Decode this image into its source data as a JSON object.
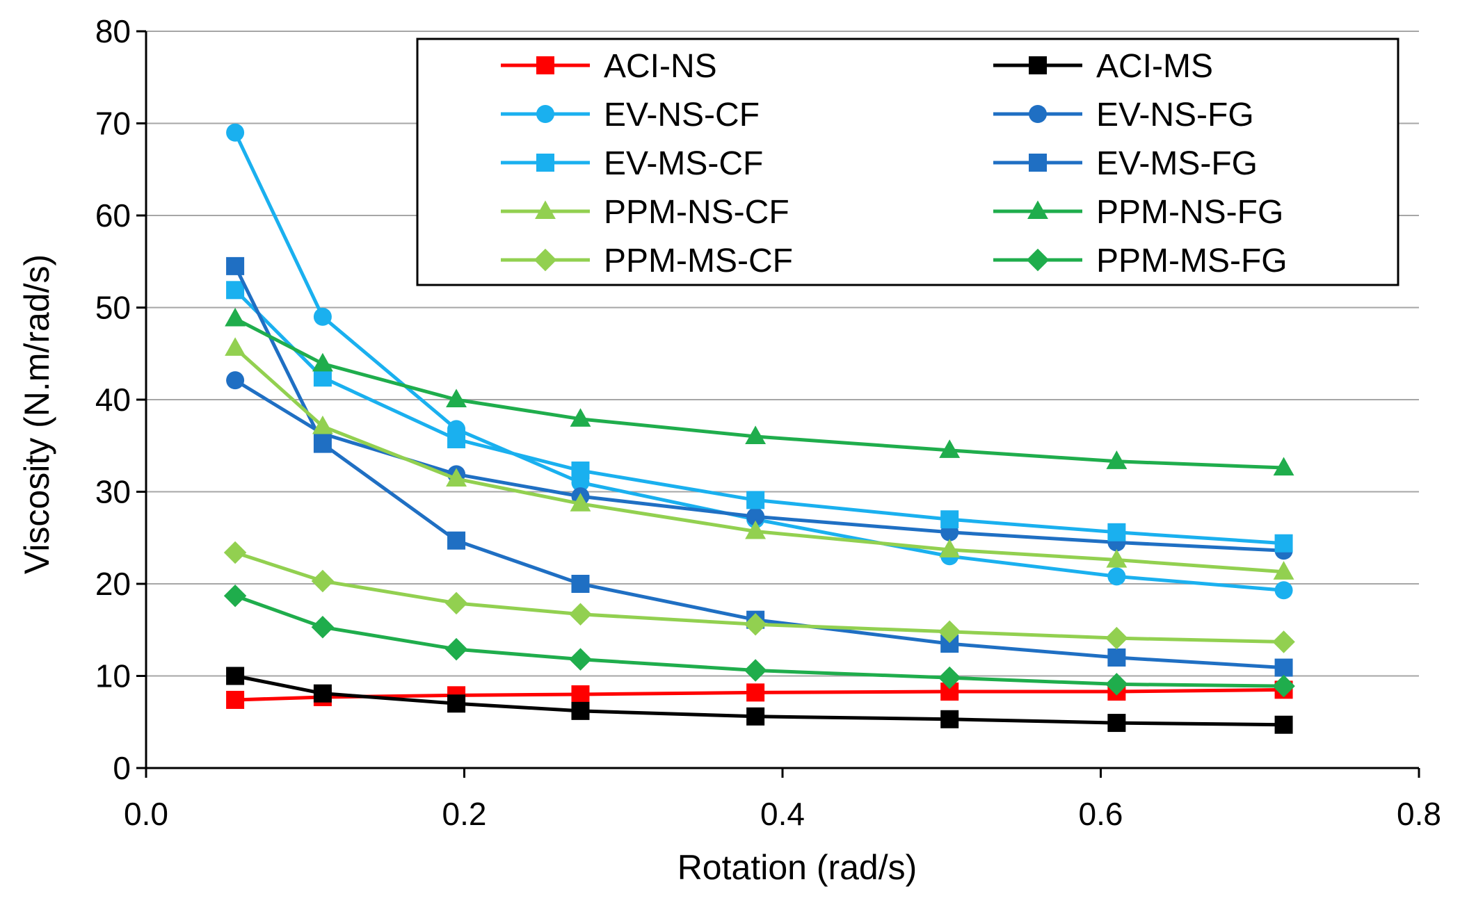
{
  "chart_data": {
    "type": "line",
    "title": "",
    "xlabel": "Rotation (rad/s)",
    "ylabel": "Viscosity (N.m/rad/s)",
    "xlim": [
      0,
      0.8
    ],
    "ylim": [
      0,
      80
    ],
    "x_ticks": [
      "0.0",
      "0.2",
      "0.4",
      "0.6",
      "0.8"
    ],
    "y_ticks": [
      "0",
      "10",
      "20",
      "30",
      "40",
      "50",
      "60",
      "70",
      "80"
    ],
    "grid": "horizontal",
    "legend_position": "top-right",
    "x": [
      0.056,
      0.111,
      0.195,
      0.273,
      0.383,
      0.505,
      0.61,
      0.715
    ],
    "series": [
      {
        "name": "ACI-NS",
        "color": "#ff0000",
        "marker": "square",
        "values": [
          7.4,
          7.7,
          7.9,
          8.0,
          8.2,
          8.3,
          8.3,
          8.5
        ]
      },
      {
        "name": "ACI-MS",
        "color": "#000000",
        "marker": "square",
        "values": [
          10.0,
          8.1,
          7.0,
          6.2,
          5.6,
          5.3,
          4.9,
          4.7
        ]
      },
      {
        "name": "EV-NS-CF",
        "color": "#1ab0ef",
        "marker": "circle",
        "values": [
          69.0,
          49.0,
          36.8,
          31.0,
          27.0,
          23.0,
          20.8,
          19.3
        ]
      },
      {
        "name": "EV-NS-FG",
        "color": "#1f6fc3",
        "marker": "circle",
        "values": [
          42.1,
          36.3,
          31.9,
          29.5,
          27.3,
          25.6,
          24.5,
          23.6
        ]
      },
      {
        "name": "EV-MS-CF",
        "color": "#1ab0ef",
        "marker": "square",
        "values": [
          51.9,
          42.4,
          35.7,
          32.3,
          29.1,
          27.0,
          25.6,
          24.4
        ]
      },
      {
        "name": "EV-MS-FG",
        "color": "#1f6fc3",
        "marker": "square",
        "values": [
          54.5,
          35.2,
          24.7,
          20.0,
          16.1,
          13.5,
          12.0,
          10.9
        ]
      },
      {
        "name": "PPM-NS-CF",
        "color": "#92d050",
        "marker": "triangle",
        "values": [
          45.6,
          37.1,
          31.4,
          28.7,
          25.7,
          23.7,
          22.6,
          21.3
        ]
      },
      {
        "name": "PPM-NS-FG",
        "color": "#1fad4c",
        "marker": "triangle",
        "values": [
          48.8,
          43.9,
          40.0,
          37.9,
          36.0,
          34.5,
          33.3,
          32.6
        ]
      },
      {
        "name": "PPM-MS-CF",
        "color": "#92d050",
        "marker": "diamond",
        "values": [
          23.4,
          20.3,
          17.9,
          16.7,
          15.6,
          14.8,
          14.1,
          13.7
        ]
      },
      {
        "name": "PPM-MS-FG",
        "color": "#1fad4c",
        "marker": "diamond",
        "values": [
          18.7,
          15.3,
          12.9,
          11.8,
          10.6,
          9.8,
          9.1,
          8.9
        ]
      }
    ]
  }
}
